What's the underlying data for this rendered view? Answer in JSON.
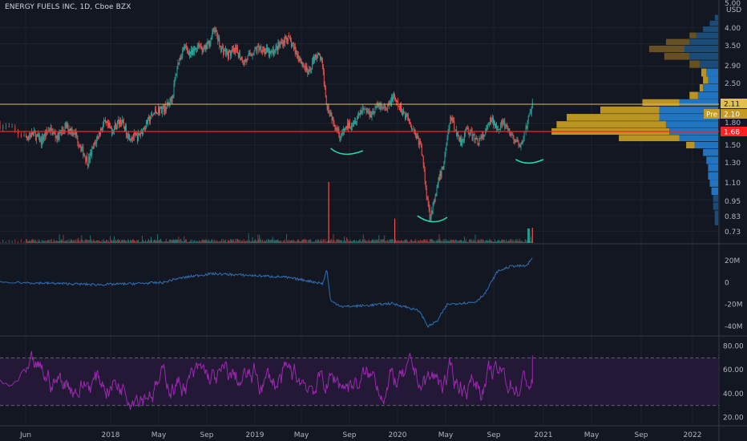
{
  "header": {
    "title": "ENERGY FUELS INC, 1D, Cboe BZX"
  },
  "price_axis": {
    "currency": "USD",
    "ticks": [
      "5.00",
      "4.00",
      "3.50",
      "2.90",
      "2.50",
      "2.11",
      "2.10",
      "1.80",
      "1.68",
      "1.50",
      "1.30",
      "1.10",
      "0.95",
      "0.83",
      "0.73"
    ]
  },
  "tags": {
    "high_line": "2.11",
    "pre_label": "Pre",
    "pre_price": "2.10",
    "red_line": "1.68"
  },
  "colors": {
    "background": "#131722",
    "candle_up": "#26a69a",
    "candle_down": "#ef5350",
    "yellow_line": "#e0c046",
    "red_line": "#ff1f1f",
    "obv": "#2e6fb5",
    "rsi": "#9c27b0",
    "vp_blue": "#2179c9",
    "vp_gold": "#c49a22",
    "curve": "#20d9a6"
  },
  "chart_data": [
    {
      "type": "candlestick",
      "title": "ENERGY FUELS INC, 1D, Cboe BZX",
      "x_ticks": [
        "Jun",
        "2018",
        "May",
        "Sep",
        "2019",
        "May",
        "Sep",
        "2020",
        "May",
        "Sep",
        "2021",
        "May",
        "Sep",
        "2022"
      ],
      "y_scale": "log",
      "ylim": [
        0.7,
        5.0
      ],
      "price_path": [
        [
          "2017-05-15",
          1.78
        ],
        [
          "2017-06-01",
          1.6
        ],
        [
          "2017-06-20",
          1.65
        ],
        [
          "2017-07-10",
          1.55
        ],
        [
          "2017-07-30",
          1.72
        ],
        [
          "2017-08-20",
          1.6
        ],
        [
          "2017-09-10",
          1.75
        ],
        [
          "2017-10-01",
          1.68
        ],
        [
          "2017-10-20",
          1.45
        ],
        [
          "2017-11-05",
          1.3
        ],
        [
          "2017-11-25",
          1.55
        ],
        [
          "2017-12-15",
          1.8
        ],
        [
          "2018-01-05",
          1.7
        ],
        [
          "2018-01-25",
          1.85
        ],
        [
          "2018-02-15",
          1.62
        ],
        [
          "2018-03-10",
          1.6
        ],
        [
          "2018-04-01",
          1.8
        ],
        [
          "2018-04-25",
          2.0
        ],
        [
          "2018-05-20",
          2.05
        ],
        [
          "2018-06-05",
          2.25
        ],
        [
          "2018-06-20",
          3.0
        ],
        [
          "2018-07-05",
          3.4
        ],
        [
          "2018-07-25",
          3.2
        ],
        [
          "2018-08-10",
          3.5
        ],
        [
          "2018-08-25",
          3.3
        ],
        [
          "2018-09-10",
          3.6
        ],
        [
          "2018-09-20",
          4.0
        ],
        [
          "2018-10-05",
          3.4
        ],
        [
          "2018-10-25",
          3.2
        ],
        [
          "2018-11-15",
          3.3
        ],
        [
          "2018-12-05",
          3.0
        ],
        [
          "2018-12-25",
          3.25
        ],
        [
          "2019-01-15",
          3.4
        ],
        [
          "2019-02-10",
          3.2
        ],
        [
          "2019-03-05",
          3.45
        ],
        [
          "2019-03-25",
          3.7
        ],
        [
          "2019-04-15",
          3.3
        ],
        [
          "2019-05-05",
          2.95
        ],
        [
          "2019-05-20",
          2.7
        ],
        [
          "2019-06-05",
          3.2
        ],
        [
          "2019-06-20",
          3.1
        ],
        [
          "2019-07-05",
          2.1
        ],
        [
          "2019-07-25",
          1.8
        ],
        [
          "2019-08-10",
          1.6
        ],
        [
          "2019-08-25",
          1.75
        ],
        [
          "2019-09-15",
          1.85
        ],
        [
          "2019-10-05",
          2.05
        ],
        [
          "2019-10-25",
          1.95
        ],
        [
          "2019-11-15",
          2.1
        ],
        [
          "2019-12-05",
          2.0
        ],
        [
          "2019-12-20",
          2.25
        ],
        [
          "2020-01-05",
          2.05
        ],
        [
          "2020-01-25",
          1.9
        ],
        [
          "2020-02-15",
          1.65
        ],
        [
          "2020-03-01",
          1.45
        ],
        [
          "2020-03-12",
          1.05
        ],
        [
          "2020-03-22",
          0.83
        ],
        [
          "2020-04-05",
          0.95
        ],
        [
          "2020-04-15",
          1.15
        ],
        [
          "2020-04-25",
          1.25
        ],
        [
          "2020-05-05",
          1.6
        ],
        [
          "2020-05-15",
          1.9
        ],
        [
          "2020-05-25",
          1.7
        ],
        [
          "2020-06-10",
          1.55
        ],
        [
          "2020-06-25",
          1.72
        ],
        [
          "2020-07-10",
          1.6
        ],
        [
          "2020-07-25",
          1.55
        ],
        [
          "2020-08-10",
          1.65
        ],
        [
          "2020-08-25",
          1.85
        ],
        [
          "2020-09-10",
          1.75
        ],
        [
          "2020-09-25",
          1.8
        ],
        [
          "2020-10-10",
          1.65
        ],
        [
          "2020-10-25",
          1.55
        ],
        [
          "2020-11-05",
          1.45
        ],
        [
          "2020-11-15",
          1.65
        ],
        [
          "2020-11-25",
          1.85
        ],
        [
          "2020-12-05",
          2.1
        ]
      ],
      "annotations": {
        "horizontal_lines": [
          2.11,
          1.68
        ],
        "curves": [
          {
            "x": [
              "2019-07-15",
              "2019-08-20",
              "2019-10-05"
            ],
            "y": [
              1.46,
              1.39,
              1.43
            ]
          },
          {
            "x": [
              "2020-02-20",
              "2020-03-30",
              "2020-05-05"
            ],
            "y": [
              0.83,
              0.79,
              0.82
            ]
          },
          {
            "x": [
              "2020-10-25",
              "2020-11-25",
              "2021-01-01"
            ],
            "y": [
              1.33,
              1.29,
              1.33
            ]
          }
        ]
      }
    },
    {
      "type": "bar",
      "name": "volume",
      "spikes": [
        {
          "x": "2019-07-10",
          "size": 1.0
        },
        {
          "x": "2019-12-25",
          "size": 0.4
        },
        {
          "x": "2020-12-05",
          "size": 0.25
        }
      ]
    },
    {
      "type": "line",
      "name": "OBV",
      "y_ticks": [
        "20M",
        "0",
        "-20M",
        "-40M"
      ],
      "ylim": [
        -45,
        25
      ],
      "path": [
        [
          "2017-05-15",
          0
        ],
        [
          "2017-09-01",
          -1
        ],
        [
          "2017-12-01",
          -2
        ],
        [
          "2018-03-01",
          -1
        ],
        [
          "2018-05-15",
          0
        ],
        [
          "2018-06-10",
          3
        ],
        [
          "2018-08-01",
          6
        ],
        [
          "2018-09-15",
          8
        ],
        [
          "2018-11-15",
          7
        ],
        [
          "2019-01-15",
          6
        ],
        [
          "2019-03-15",
          5
        ],
        [
          "2019-05-10",
          2
        ],
        [
          "2019-06-25",
          -1
        ],
        [
          "2019-07-05",
          12
        ],
        [
          "2019-07-15",
          -17
        ],
        [
          "2019-08-15",
          -22
        ],
        [
          "2019-10-15",
          -21
        ],
        [
          "2019-12-15",
          -19
        ],
        [
          "2020-01-20",
          -22
        ],
        [
          "2020-02-25",
          -26
        ],
        [
          "2020-03-18",
          -40
        ],
        [
          "2020-04-10",
          -35
        ],
        [
          "2020-05-05",
          -20
        ],
        [
          "2020-06-01",
          -19
        ],
        [
          "2020-07-15",
          -18
        ],
        [
          "2020-08-10",
          -10
        ],
        [
          "2020-09-10",
          10
        ],
        [
          "2020-10-15",
          15
        ],
        [
          "2020-11-20",
          15
        ],
        [
          "2020-12-05",
          22
        ]
      ]
    },
    {
      "type": "line",
      "name": "RSI",
      "y_ticks": [
        "80.00",
        "60.00",
        "40.00",
        "20.00"
      ],
      "ylim": [
        15,
        85
      ],
      "bands": [
        70,
        30
      ],
      "seed": 7
    },
    {
      "type": "bar",
      "name": "volume_profile",
      "levels": [
        {
          "p": 4.35,
          "blue": 4,
          "gold": 0
        },
        {
          "p": 4.15,
          "blue": 10,
          "gold": 0
        },
        {
          "p": 3.95,
          "blue": 18,
          "gold": 0
        },
        {
          "p": 3.75,
          "blue": 26,
          "gold": 8
        },
        {
          "p": 3.55,
          "blue": 34,
          "gold": 28
        },
        {
          "p": 3.35,
          "blue": 40,
          "gold": 42
        },
        {
          "p": 3.15,
          "blue": 34,
          "gold": 30
        },
        {
          "p": 2.95,
          "blue": 22,
          "gold": 12
        },
        {
          "p": 2.75,
          "blue": 14,
          "gold": 6
        },
        {
          "p": 2.58,
          "blue": 12,
          "gold": 6
        },
        {
          "p": 2.42,
          "blue": 18,
          "gold": 4
        },
        {
          "p": 2.27,
          "blue": 24,
          "gold": 10
        },
        {
          "p": 2.14,
          "blue": 46,
          "gold": 44
        },
        {
          "p": 2.01,
          "blue": 70,
          "gold": 70
        },
        {
          "p": 1.89,
          "blue": 70,
          "gold": 110
        },
        {
          "p": 1.78,
          "blue": 62,
          "gold": 130
        },
        {
          "p": 1.68,
          "blue": 58,
          "gold": 140
        },
        {
          "p": 1.59,
          "blue": 46,
          "gold": 72
        },
        {
          "p": 1.5,
          "blue": 28,
          "gold": 10
        },
        {
          "p": 1.41,
          "blue": 18,
          "gold": 0
        },
        {
          "p": 1.32,
          "blue": 14,
          "gold": 0
        },
        {
          "p": 1.24,
          "blue": 12,
          "gold": 0
        },
        {
          "p": 1.16,
          "blue": 12,
          "gold": 0
        },
        {
          "p": 1.09,
          "blue": 10,
          "gold": 0
        },
        {
          "p": 1.02,
          "blue": 8,
          "gold": 0
        },
        {
          "p": 0.96,
          "blue": 6,
          "gold": 0
        },
        {
          "p": 0.9,
          "blue": 6,
          "gold": 0
        },
        {
          "p": 0.84,
          "blue": 4,
          "gold": 0
        },
        {
          "p": 0.79,
          "blue": 4,
          "gold": 0
        }
      ]
    }
  ]
}
